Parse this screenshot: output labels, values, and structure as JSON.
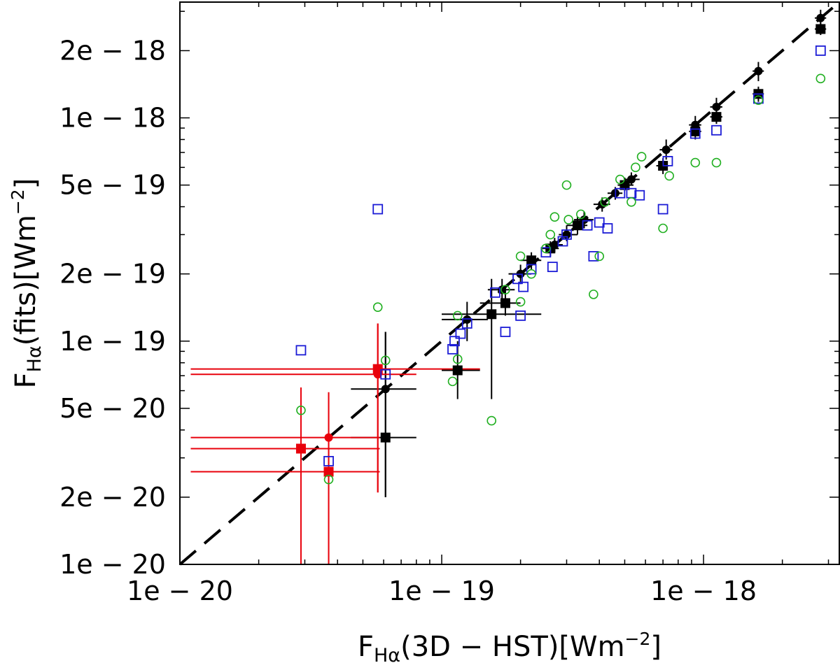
{
  "chart_data": {
    "type": "scatter",
    "title": "",
    "xscale": "log",
    "yscale": "log",
    "xlim": [
      1e-20,
      3.3e-18
    ],
    "ylim": [
      1e-20,
      3.3e-18
    ],
    "xticks": [
      {
        "value": 1e-20,
        "label": "1e − 20"
      },
      {
        "value": 1e-19,
        "label": "1e − 19"
      },
      {
        "value": 1e-18,
        "label": "1e − 18"
      }
    ],
    "yticks": [
      {
        "value": 1e-20,
        "label": "1e − 20"
      },
      {
        "value": 2e-20,
        "label": "2e − 20"
      },
      {
        "value": 5e-20,
        "label": "5e − 20"
      },
      {
        "value": 1e-19,
        "label": "1e − 19"
      },
      {
        "value": 2e-19,
        "label": "2e − 19"
      },
      {
        "value": 5e-19,
        "label": "5e − 19"
      },
      {
        "value": 1e-18,
        "label": "1e − 18"
      },
      {
        "value": 2e-18,
        "label": "2e − 18"
      }
    ],
    "xlabel": {
      "main": "F",
      "sub": "Hα",
      "rest": "(3D − HST)[Wm",
      "sup": "−2",
      "end": "]"
    },
    "ylabel": {
      "main": "F",
      "sub": "Hα",
      "rest": "(fits)[Wm",
      "sup": "−2",
      "end": "]"
    },
    "reference_line": {
      "style": "dashed",
      "color": "#000000",
      "from": [
        1e-20,
        1e-20
      ],
      "to": [
        3.3e-18,
        3.3e-18
      ]
    },
    "colors": {
      "black": "#000000",
      "red": "#e8000b",
      "blue": "#1c1cd6",
      "green": "#22b022"
    },
    "series": [
      {
        "marker": "filled-circle",
        "color": "#000000",
        "points": [
          {
            "x": 6.1e-20,
            "y": 6.1e-20,
            "xerr": [
              4.5e-20,
              8e-20
            ],
            "yerr": [
              2e-20,
              1.1e-19
            ]
          },
          {
            "x": 1.25e-19,
            "y": 1.25e-19,
            "xerr": [
              1e-19,
              1.5e-19
            ],
            "yerr": [
              1e-19,
              1.5e-19
            ]
          },
          {
            "x": 1.7e-19,
            "y": 1.7e-19,
            "xerr": [
              1.5e-19,
              1.9e-19
            ],
            "yerr": [
              1.5e-19,
              1.9e-19
            ]
          },
          {
            "x": 2e-19,
            "y": 2e-19,
            "xerr": [
              1.8e-19,
              2.2e-19
            ],
            "yerr": [
              1.8e-19,
              2.2e-19
            ]
          },
          {
            "x": 2.7e-19,
            "y": 2.7e-19,
            "xerr": [
              2.5e-19,
              2.9e-19
            ],
            "yerr": [
              2.5e-19,
              2.9e-19
            ]
          },
          {
            "x": 3e-19,
            "y": 3e-19,
            "xerr": [
              2.8e-19,
              3.3e-19
            ],
            "yerr": [
              2.8e-19,
              3.3e-19
            ]
          },
          {
            "x": 3.5e-19,
            "y": 3.5e-19,
            "xerr": [
              3.2e-19,
              3.8e-19
            ],
            "yerr": [
              3.2e-19,
              3.8e-19
            ]
          },
          {
            "x": 4.1e-19,
            "y": 4.1e-19,
            "xerr": [
              3.8e-19,
              4.4e-19
            ],
            "yerr": [
              3.8e-19,
              4.4e-19
            ]
          },
          {
            "x": 4.6e-19,
            "y": 4.6e-19,
            "xerr": [
              4.3e-19,
              4.9e-19
            ],
            "yerr": [
              4.3e-19,
              4.9e-19
            ]
          },
          {
            "x": 5.3e-19,
            "y": 5.3e-19,
            "xerr": [
              5e-19,
              5.7e-19
            ],
            "yerr": [
              5e-19,
              5.7e-19
            ]
          },
          {
            "x": 7.2e-19,
            "y": 7.2e-19,
            "xerr": [
              6.8e-19,
              7.6e-19
            ],
            "yerr": [
              6.5e-19,
              8e-19
            ]
          },
          {
            "x": 9.3e-19,
            "y": 9.3e-19,
            "xerr": [
              8.8e-19,
              9.8e-19
            ],
            "yerr": [
              8.5e-19,
              1.02e-18
            ]
          },
          {
            "x": 1.12e-18,
            "y": 1.12e-18,
            "xerr": [
              1.06e-18,
              1.18e-18
            ],
            "yerr": [
              1.02e-18,
              1.23e-18
            ]
          },
          {
            "x": 1.62e-18,
            "y": 1.62e-18,
            "xerr": [
              1.54e-18,
              1.7e-18
            ],
            "yerr": [
              1.46e-18,
              1.78e-18
            ]
          },
          {
            "x": 2.8e-18,
            "y": 2.8e-18,
            "xerr": [
              2.66e-18,
              2.94e-18
            ],
            "yerr": [
              2.55e-18,
              3.05e-18
            ]
          }
        ]
      },
      {
        "marker": "filled-square",
        "color": "#000000",
        "points": [
          {
            "x": 6.1e-20,
            "y": 3.7e-20,
            "xerr": [
              4.5e-20,
              8e-20
            ],
            "yerr": [
              2e-20,
              1.1e-19
            ]
          },
          {
            "x": 1.15e-19,
            "y": 7.4e-20,
            "xerr": [
              1e-19,
              1.4e-19
            ],
            "yerr": [
              5.5e-20,
              1e-19
            ]
          },
          {
            "x": 1.55e-19,
            "y": 1.32e-19,
            "xerr": [
              1e-19,
              2.4e-19
            ],
            "yerr": [
              5.5e-20,
              1.9e-19
            ]
          },
          {
            "x": 1.75e-19,
            "y": 1.48e-19,
            "xerr": [
              1.4e-19,
              2e-19
            ],
            "yerr": [
              1.3e-19,
              1.7e-19
            ]
          },
          {
            "x": 2.2e-19,
            "y": 2.3e-19,
            "xerr": [
              2e-19,
              2.4e-19
            ],
            "yerr": [
              2.1e-19,
              2.5e-19
            ]
          },
          {
            "x": 2.6e-19,
            "y": 2.6e-19,
            "xerr": [
              2.4e-19,
              2.8e-19
            ],
            "yerr": [
              2.4e-19,
              2.8e-19
            ]
          },
          {
            "x": 3.3e-19,
            "y": 3.3e-19,
            "xerr": [
              3e-19,
              3.6e-19
            ],
            "yerr": [
              3e-19,
              3.6e-19
            ]
          },
          {
            "x": 5e-19,
            "y": 5e-19,
            "xerr": [
              4.7e-19,
              5.4e-19
            ],
            "yerr": [
              4.7e-19,
              5.4e-19
            ]
          },
          {
            "x": 7e-19,
            "y": 6.1e-19,
            "xerr": [
              6.6e-19,
              7.4e-19
            ],
            "yerr": [
              5.6e-19,
              6.6e-19
            ]
          },
          {
            "x": 9.3e-19,
            "y": 8.7e-19,
            "xerr": [
              8.8e-19,
              9.8e-19
            ],
            "yerr": [
              8e-19,
              9.4e-19
            ]
          },
          {
            "x": 1.12e-18,
            "y": 1.01e-18,
            "xerr": [
              1.06e-18,
              1.18e-18
            ],
            "yerr": [
              9.4e-19,
              1.08e-18
            ]
          },
          {
            "x": 1.62e-18,
            "y": 1.28e-18,
            "xerr": [
              1.54e-18,
              1.7e-18
            ],
            "yerr": [
              1.18e-18,
              1.38e-18
            ]
          },
          {
            "x": 2.8e-18,
            "y": 2.5e-18,
            "xerr": [
              2.66e-18,
              2.94e-18
            ],
            "yerr": [
              2.35e-18,
              2.65e-18
            ]
          }
        ]
      },
      {
        "marker": "filled-circle",
        "color": "#e8000b",
        "points": [
          {
            "x": 3.7e-20,
            "y": 3.7e-20,
            "xerr": [
              1.1e-20,
              5.8e-20
            ],
            "yerr": [
              1e-20,
              5.9e-20
            ]
          },
          {
            "x": 5.7e-20,
            "y": 7.1e-20,
            "xerr": [
              1.1e-20,
              8e-20
            ],
            "yerr": [
              2.1e-20,
              1.2e-19
            ]
          }
        ]
      },
      {
        "marker": "filled-square",
        "color": "#e8000b",
        "points": [
          {
            "x": 2.9e-20,
            "y": 3.3e-20,
            "xerr": [
              1.1e-20,
              5.8e-20
            ],
            "yerr": [
              1e-20,
              6.2e-20
            ]
          },
          {
            "x": 3.7e-20,
            "y": 2.6e-20,
            "xerr": [
              1.1e-20,
              5.8e-20
            ],
            "yerr": [
              1e-20,
              5.9e-20
            ]
          },
          {
            "x": 5.7e-20,
            "y": 7.5e-20,
            "xerr": [
              1.1e-20,
              1.4e-19
            ],
            "yerr": [
              2.1e-20,
              1.2e-19
            ]
          }
        ]
      },
      {
        "marker": "open-square",
        "color": "#1c1cd6",
        "points": [
          {
            "x": 2.9e-20,
            "y": 9.1e-20
          },
          {
            "x": 3.7e-20,
            "y": 2.9e-20
          },
          {
            "x": 5.7e-20,
            "y": 3.9e-19
          },
          {
            "x": 6.1e-20,
            "y": 7.1e-20
          },
          {
            "x": 1.1e-19,
            "y": 9.2e-20
          },
          {
            "x": 1.12e-19,
            "y": 1e-19
          },
          {
            "x": 1.18e-19,
            "y": 1.08e-19
          },
          {
            "x": 1.25e-19,
            "y": 1.2e-19
          },
          {
            "x": 1.6e-19,
            "y": 1.65e-19
          },
          {
            "x": 1.75e-19,
            "y": 1.1e-19
          },
          {
            "x": 2e-19,
            "y": 1.3e-19
          },
          {
            "x": 1.95e-19,
            "y": 1.9e-19
          },
          {
            "x": 2.05e-19,
            "y": 1.75e-19
          },
          {
            "x": 2.2e-19,
            "y": 2.1e-19
          },
          {
            "x": 2.5e-19,
            "y": 2.5e-19
          },
          {
            "x": 2.65e-19,
            "y": 2.15e-19
          },
          {
            "x": 2.9e-19,
            "y": 2.8e-19
          },
          {
            "x": 3e-19,
            "y": 3e-19
          },
          {
            "x": 3.6e-19,
            "y": 3.3e-19
          },
          {
            "x": 3.8e-19,
            "y": 2.4e-19
          },
          {
            "x": 4e-19,
            "y": 3.4e-19
          },
          {
            "x": 4.3e-19,
            "y": 3.2e-19
          },
          {
            "x": 4.8e-19,
            "y": 4.6e-19
          },
          {
            "x": 5.3e-19,
            "y": 4.6e-19
          },
          {
            "x": 5.7e-19,
            "y": 4.5e-19
          },
          {
            "x": 7e-19,
            "y": 3.9e-19
          },
          {
            "x": 7.3e-19,
            "y": 6.4e-19
          },
          {
            "x": 9.3e-19,
            "y": 8.5e-19
          },
          {
            "x": 1.12e-18,
            "y": 8.8e-19
          },
          {
            "x": 1.62e-18,
            "y": 1.22e-18
          },
          {
            "x": 2.8e-18,
            "y": 2e-18
          }
        ]
      },
      {
        "marker": "open-circle",
        "color": "#22b022",
        "points": [
          {
            "x": 2.9e-20,
            "y": 4.9e-20
          },
          {
            "x": 3.7e-20,
            "y": 2.4e-20
          },
          {
            "x": 5.7e-20,
            "y": 1.42e-19
          },
          {
            "x": 6.1e-20,
            "y": 8.2e-20
          },
          {
            "x": 1.1e-19,
            "y": 6.6e-20
          },
          {
            "x": 1.15e-19,
            "y": 8.3e-20
          },
          {
            "x": 1.15e-19,
            "y": 1.3e-19
          },
          {
            "x": 1.55e-19,
            "y": 4.4e-20
          },
          {
            "x": 1.75e-19,
            "y": 1.7e-19
          },
          {
            "x": 2e-19,
            "y": 1.5e-19
          },
          {
            "x": 2e-19,
            "y": 2.4e-19
          },
          {
            "x": 2.2e-19,
            "y": 2e-19
          },
          {
            "x": 2.5e-19,
            "y": 2.6e-19
          },
          {
            "x": 2.6e-19,
            "y": 3e-19
          },
          {
            "x": 2.7e-19,
            "y": 3.6e-19
          },
          {
            "x": 3e-19,
            "y": 5e-19
          },
          {
            "x": 3.05e-19,
            "y": 3.5e-19
          },
          {
            "x": 3.4e-19,
            "y": 3.7e-19
          },
          {
            "x": 3.8e-19,
            "y": 1.62e-19
          },
          {
            "x": 4e-19,
            "y": 2.4e-19
          },
          {
            "x": 4.2e-19,
            "y": 4.2e-19
          },
          {
            "x": 4.8e-19,
            "y": 5.3e-19
          },
          {
            "x": 5.3e-19,
            "y": 4.2e-19
          },
          {
            "x": 5.5e-19,
            "y": 6e-19
          },
          {
            "x": 5.8e-19,
            "y": 6.7e-19
          },
          {
            "x": 7e-19,
            "y": 3.2e-19
          },
          {
            "x": 7.4e-19,
            "y": 5.5e-19
          },
          {
            "x": 9.3e-19,
            "y": 6.3e-19
          },
          {
            "x": 1.12e-18,
            "y": 6.3e-19
          },
          {
            "x": 1.62e-18,
            "y": 1.2e-18
          },
          {
            "x": 2.8e-18,
            "y": 1.5e-18
          }
        ]
      }
    ]
  }
}
